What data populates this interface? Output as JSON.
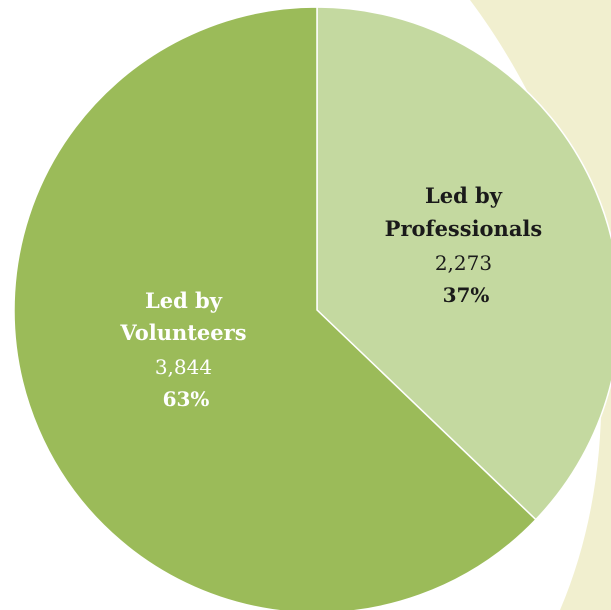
{
  "chart_data": {
    "type": "pie",
    "title": "",
    "slices": [
      {
        "name_lines": [
          "Led by",
          "Professionals"
        ],
        "value": 2273,
        "value_label": "2,273",
        "percent": 37,
        "percent_label": "37%",
        "color": "#c4d9a0",
        "label_color": "#1a1a1a"
      },
      {
        "name_lines": [
          "Led by",
          "Volunteers"
        ],
        "value": 3844,
        "value_label": "3,844",
        "percent": 63,
        "percent_label": "63%",
        "color": "#9bbb59",
        "label_color": "#ffffff"
      }
    ],
    "start_angle_deg": 0,
    "direction": "clockwise",
    "legend": "none"
  },
  "colors": {
    "background_swoosh": "#f1efcf",
    "slice_border": "#ffffff"
  }
}
